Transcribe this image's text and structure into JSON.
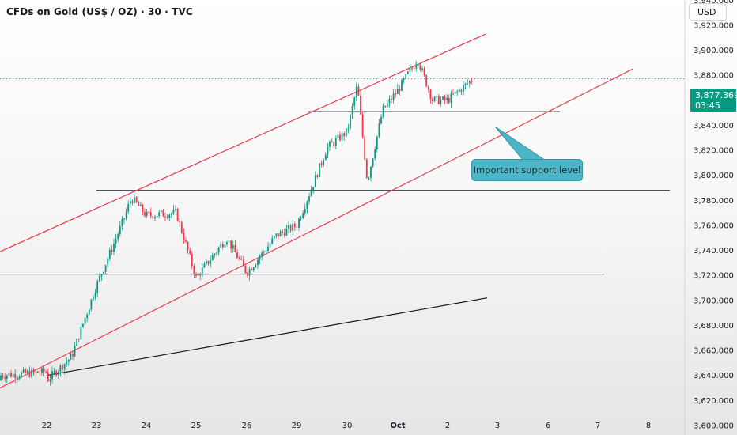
{
  "header": {
    "title": "CFDs on Gold (US$ / OZ) · 30 · TVC",
    "currency": "USD"
  },
  "price_badge": {
    "price": "3,877.369",
    "countdown": "03:45"
  },
  "annotation": {
    "text": "Important support level"
  },
  "colors": {
    "up": "#089981",
    "down": "#f23645",
    "channel": "#f23645",
    "level_lines": "#131722",
    "callout_fill": "#4db6c6",
    "last_price_line": "#089981"
  },
  "chart_data": {
    "type": "candlestick",
    "title": "CFDs on Gold (US$ / OZ) · 30 · TVC",
    "xlabel": "",
    "ylabel": "",
    "ylim": [
      3593,
      3955
    ],
    "x_ticks": [
      "22",
      "23",
      "24",
      "25",
      "26",
      "29",
      "30",
      "Oct",
      "2",
      "3",
      "6",
      "7",
      "8"
    ],
    "y_ticks": [
      3600,
      3620,
      3640,
      3660,
      3680,
      3700,
      3720,
      3740,
      3760,
      3780,
      3800,
      3820,
      3840,
      3860,
      3880,
      3900,
      3920,
      3940
    ],
    "last_price": 3877.369,
    "price_path": [
      [
        "22",
        3636
      ],
      [
        "22.5",
        3655
      ],
      [
        "23",
        3712
      ],
      [
        "23.5",
        3760
      ],
      [
        "23.7",
        3782
      ],
      [
        "24",
        3768
      ],
      [
        "24.6",
        3770
      ],
      [
        "25",
        3718
      ],
      [
        "25.6",
        3750
      ],
      [
        "26",
        3722
      ],
      [
        "26.6",
        3752
      ],
      [
        "29",
        3760
      ],
      [
        "29.3",
        3790
      ],
      [
        "29.6",
        3822
      ],
      [
        "30",
        3835
      ],
      [
        "30.2",
        3872
      ],
      [
        "30.4",
        3795
      ],
      [
        "30.7",
        3852
      ],
      [
        "Oct",
        3868
      ],
      [
        "Oct.4",
        3893
      ],
      [
        "Oct.7",
        3860
      ],
      [
        "2",
        3860
      ],
      [
        "2.5",
        3877
      ]
    ],
    "horizontal_levels": [
      3851,
      3788,
      3721
    ],
    "support_trendline": [
      [
        "22",
        3640
      ],
      [
        "3",
        3702
      ]
    ],
    "channel_upper": [
      [
        "21.6",
        3739
      ],
      [
        "2.8",
        3913
      ]
    ],
    "channel_lower": [
      [
        "22",
        3638
      ],
      [
        "7.6",
        3885
      ]
    ],
    "grid": false,
    "legend": "none"
  }
}
